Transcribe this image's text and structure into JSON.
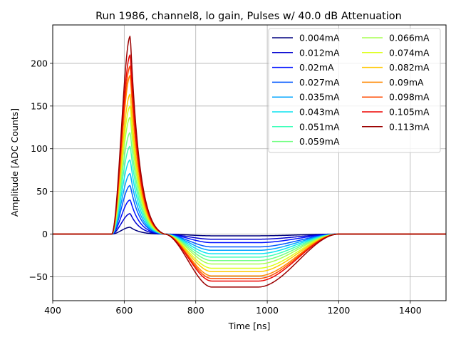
{
  "chart_data": {
    "type": "line",
    "title": "Run 1986, channel8, lo gain, Pulses w/ 40.0 dB Attenuation",
    "xlabel": "Time [ns]",
    "ylabel": "Amplitude [ADC Counts]",
    "xlim": [
      400,
      1500
    ],
    "ylim": [
      -78,
      245
    ],
    "xticks": [
      400,
      600,
      800,
      1000,
      1200,
      1400
    ],
    "yticks": [
      -50,
      0,
      50,
      100,
      150,
      200
    ],
    "grid": true,
    "legend": {
      "placement": "top-right",
      "columns": 2
    },
    "series": [
      {
        "name": "0.004mA",
        "color": "#00007f",
        "peak": 8,
        "trough": -2
      },
      {
        "name": "0.012mA",
        "color": "#0000d0",
        "peak": 24,
        "trough": -6
      },
      {
        "name": "0.02mA",
        "color": "#0010ff",
        "peak": 40,
        "trough": -10
      },
      {
        "name": "0.027mA",
        "color": "#0058ff",
        "peak": 57,
        "trough": -15
      },
      {
        "name": "0.035mA",
        "color": "#00a4ff",
        "peak": 71,
        "trough": -19
      },
      {
        "name": "0.043mA",
        "color": "#0ce4f0",
        "peak": 87,
        "trough": -23
      },
      {
        "name": "0.051mA",
        "color": "#3effb9",
        "peak": 103,
        "trough": -27
      },
      {
        "name": "0.059mA",
        "color": "#73ff83",
        "peak": 119,
        "trough": -31
      },
      {
        "name": "0.066mA",
        "color": "#a7ff50",
        "peak": 137,
        "trough": -35
      },
      {
        "name": "0.074mA",
        "color": "#ddff1a",
        "peak": 150,
        "trough": -40
      },
      {
        "name": "0.082mA",
        "color": "#ffc800",
        "peak": 164,
        "trough": -44
      },
      {
        "name": "0.09mA",
        "color": "#ff8900",
        "peak": 186,
        "trough": -49
      },
      {
        "name": "0.098mA",
        "color": "#ff4a00",
        "peak": 197,
        "trough": -52
      },
      {
        "name": "0.105mA",
        "color": "#ed0400",
        "peak": 210,
        "trough": -55
      },
      {
        "name": "0.113mA",
        "color": "#9b0000",
        "peak": 232,
        "trough": -62
      }
    ]
  }
}
